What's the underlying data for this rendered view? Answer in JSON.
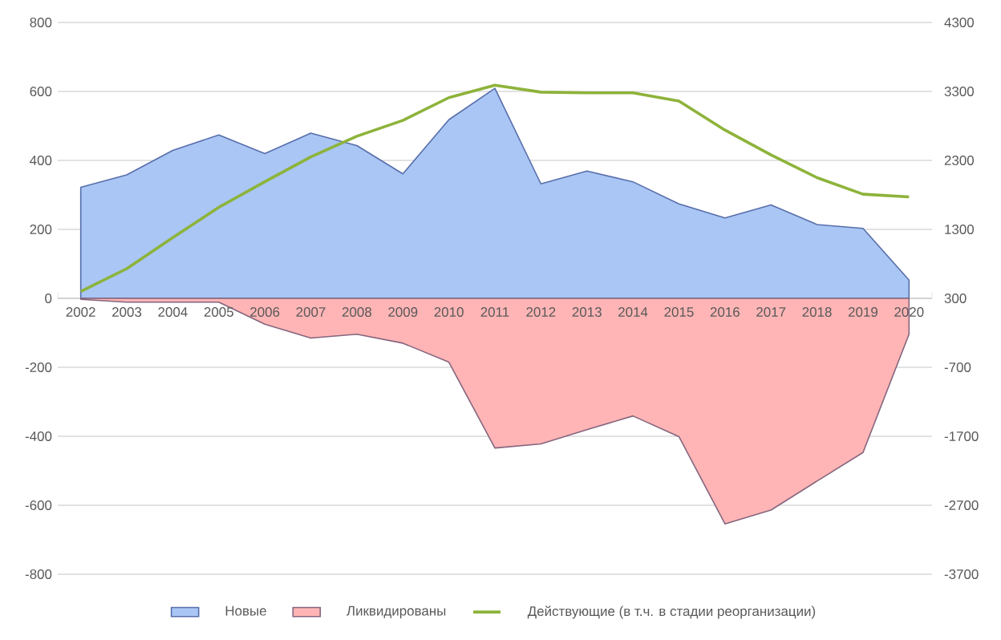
{
  "chart_data": {
    "type": "area",
    "categories": [
      "2002",
      "2003",
      "2004",
      "2005",
      "2006",
      "2007",
      "2008",
      "2009",
      "2010",
      "2011",
      "2012",
      "2013",
      "2014",
      "2015",
      "2016",
      "2017",
      "2018",
      "2019",
      "2020"
    ],
    "series": [
      {
        "name": "Новые",
        "color": "#a9c6f5",
        "values": [
          322,
          358,
          429,
          474,
          420,
          479,
          443,
          361,
          518,
          609,
          332,
          369,
          338,
          274,
          233,
          271,
          214,
          203,
          53
        ]
      },
      {
        "name": "Ликвидированы",
        "color": "#ffb5b5",
        "values": [
          -3,
          -11,
          -11,
          -11,
          -75,
          -115,
          -104,
          -130,
          -185,
          -434,
          -422,
          -381,
          -341,
          -401,
          -654,
          -614,
          -530,
          -447,
          -104
        ]
      },
      {
        "name": "Действующие (в т.ч. в стадии реорганизации)",
        "type": "line",
        "axis": "y2",
        "color": "#8db33a",
        "values": [
          400,
          730,
          1180,
          1620,
          1990,
          2350,
          2650,
          2880,
          3210,
          3390,
          3290,
          3280,
          3280,
          3160,
          2740,
          2380,
          2050,
          1810,
          1770
        ]
      }
    ],
    "ylim": [
      -800,
      800
    ],
    "yticks": [
      -800,
      -600,
      -400,
      -200,
      0,
      200,
      400,
      600,
      800
    ],
    "y2lim": [
      -3700,
      4300
    ],
    "y2ticks": [
      -3700,
      -2700,
      -1700,
      -700,
      300,
      1300,
      2300,
      3300,
      4300
    ],
    "grid": "y",
    "legend": "bottom"
  }
}
